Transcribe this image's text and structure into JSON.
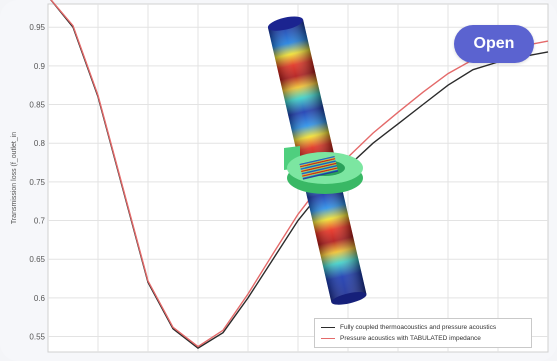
{
  "open_button": {
    "label": "Open"
  },
  "chart_data": {
    "type": "line",
    "title": "",
    "xlabel": "",
    "ylabel": "Transmission loss (f_outlet_in",
    "ylim": [
      0.53,
      0.98
    ],
    "yticks": [
      "0.95",
      "0.9",
      "0.85",
      "0.8",
      "0.75",
      "0.7",
      "0.65",
      "0.6",
      "0.55"
    ],
    "grid": true,
    "legend_placement": "bottom-right",
    "x": [
      0,
      1,
      2,
      3,
      4,
      5,
      6,
      7,
      8,
      9,
      10,
      11,
      12,
      13,
      14,
      15,
      16,
      17,
      18,
      19,
      20
    ],
    "series": [
      {
        "name": "Fully coupled thermoacoustics and pressure acoustics",
        "color": "#2b2b2b",
        "values": [
          0.99,
          0.95,
          0.86,
          0.74,
          0.62,
          0.56,
          0.535,
          0.555,
          0.6,
          0.65,
          0.7,
          0.74,
          0.77,
          0.8,
          0.825,
          0.85,
          0.875,
          0.895,
          0.905,
          0.912,
          0.918
        ]
      },
      {
        "name": "Pressure acoustics with TABULATED impedance",
        "color": "#e46a6a",
        "values": [
          0.99,
          0.952,
          0.862,
          0.742,
          0.622,
          0.562,
          0.537,
          0.558,
          0.605,
          0.657,
          0.708,
          0.75,
          0.782,
          0.813,
          0.84,
          0.866,
          0.89,
          0.908,
          0.918,
          0.926,
          0.932
        ]
      }
    ]
  }
}
